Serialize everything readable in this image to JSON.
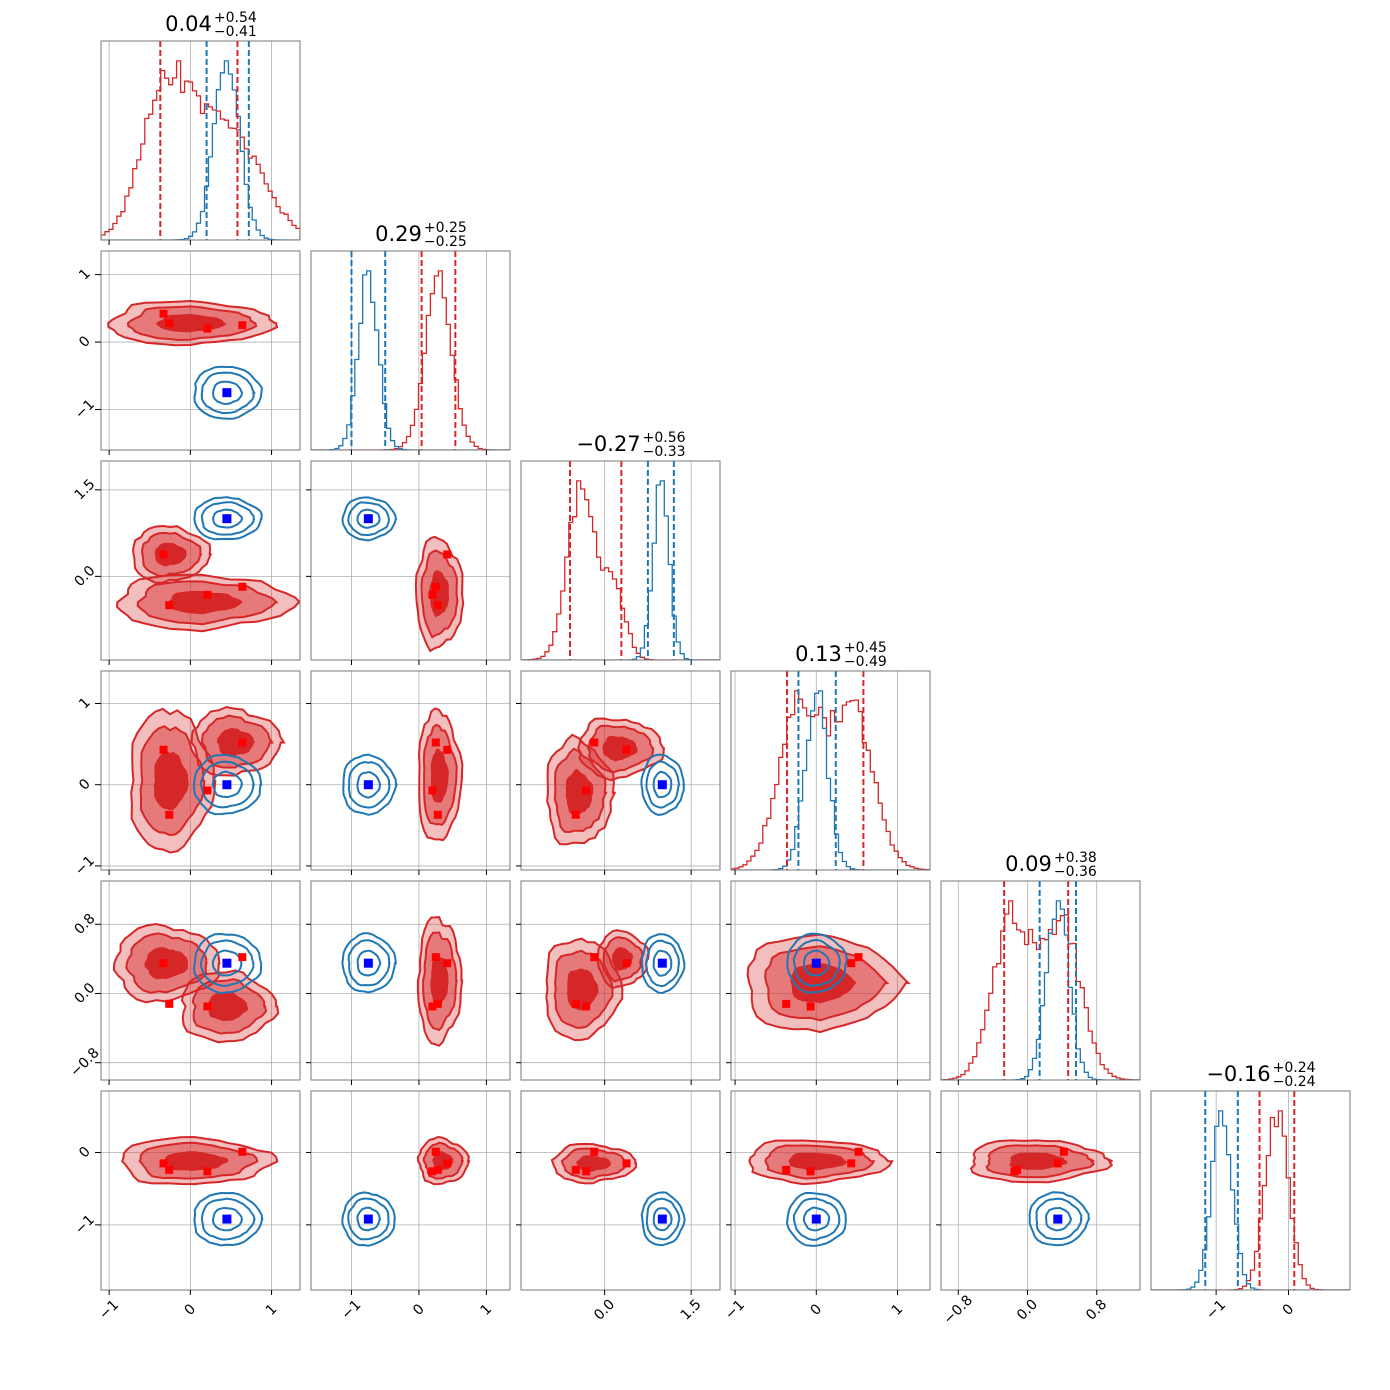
{
  "chart_data": {
    "type": "corner",
    "n_params": 6,
    "colors": {
      "red_posterior": "#d62728",
      "blue_posterior": "#1f77b4",
      "red_marker": "#ff0000",
      "blue_marker": "#0000ff",
      "grid": "#b0b0b0"
    },
    "titles": [
      {
        "median": "0.04",
        "plus": "+0.54",
        "minus": "−0.41"
      },
      {
        "median": "0.29",
        "plus": "+0.25",
        "minus": "−0.25"
      },
      {
        "median": "−0.27",
        "plus": "+0.56",
        "minus": "−0.33"
      },
      {
        "median": "0.13",
        "plus": "+0.45",
        "minus": "−0.49"
      },
      {
        "median": "0.09",
        "plus": "+0.38",
        "minus": "−0.36"
      },
      {
        "median": "−0.16",
        "plus": "+0.24",
        "minus": "−0.24"
      }
    ],
    "axes": [
      {
        "range": [
          -1.1,
          1.35
        ],
        "ticks": [
          -1,
          0,
          1
        ],
        "tick_labels": [
          "−1",
          "0",
          "1"
        ]
      },
      {
        "range": [
          -1.6,
          1.35
        ],
        "ticks": [
          -1,
          0,
          1
        ],
        "tick_labels": [
          "−1",
          "0",
          "1"
        ]
      },
      {
        "range": [
          -1.45,
          2.0
        ],
        "ticks": [
          0.0,
          1.5
        ],
        "tick_labels": [
          "0.0",
          "1.5"
        ]
      },
      {
        "range": [
          -1.05,
          1.4
        ],
        "ticks": [
          -1,
          0,
          1
        ],
        "tick_labels": [
          "−1",
          "0",
          "1"
        ]
      },
      {
        "range": [
          -1.0,
          1.3
        ],
        "ticks": [
          -0.8,
          0.0,
          0.8
        ],
        "tick_labels": [
          "−0.8",
          "0.0",
          "0.8"
        ]
      },
      {
        "range": [
          -1.9,
          0.85
        ],
        "ticks": [
          -1,
          0
        ],
        "tick_labels": [
          "−1",
          "0"
        ]
      }
    ],
    "quantile_lines": {
      "red": [
        [
          -0.37,
          0.58
        ],
        [
          0.04,
          0.54
        ],
        [
          -0.6,
          0.29
        ],
        [
          -0.36,
          0.58
        ],
        [
          -0.27,
          0.47
        ],
        [
          -0.4,
          0.08
        ]
      ],
      "blue": [
        [
          0.2,
          0.72
        ],
        [
          -1.0,
          -0.5
        ],
        [
          0.75,
          1.2
        ],
        [
          -0.22,
          0.24
        ],
        [
          0.14,
          0.56
        ],
        [
          -1.15,
          -0.7
        ]
      ]
    },
    "markers": {
      "blue": [
        0.45,
        -0.75,
        1.0,
        0.0,
        0.35,
        -0.92
      ],
      "red": [
        [
          -0.33,
          0.42,
          0.38,
          0.43,
          0.35,
          -0.15
        ],
        [
          -0.26,
          0.28,
          -0.5,
          -0.37,
          -0.12,
          -0.24
        ],
        [
          0.21,
          0.2,
          -0.32,
          -0.07,
          -0.15,
          -0.26
        ],
        [
          0.64,
          0.25,
          -0.18,
          0.52,
          0.42,
          0.01
        ]
      ]
    },
    "red_marginals": [
      {
        "modes": [
          [
            -0.3,
            0.3
          ],
          [
            0.45,
            0.42
          ]
        ],
        "weights": [
          1.0,
          0.75
        ]
      },
      {
        "modes": [
          [
            0.29,
            0.2
          ]
        ],
        "weights": [
          1.0
        ]
      },
      {
        "modes": [
          [
            -0.38,
            0.25
          ],
          [
            0.2,
            0.18
          ]
        ],
        "weights": [
          1.0,
          0.35
        ]
      },
      {
        "modes": [
          [
            -0.2,
            0.26
          ],
          [
            0.45,
            0.26
          ]
        ],
        "weights": [
          1.0,
          0.95
        ]
      },
      {
        "modes": [
          [
            -0.18,
            0.22
          ],
          [
            0.4,
            0.22
          ]
        ],
        "weights": [
          1.0,
          0.95
        ]
      },
      {
        "modes": [
          [
            -0.16,
            0.16
          ]
        ],
        "weights": [
          1.0
        ]
      }
    ],
    "blue_marginals": [
      {
        "modes": [
          [
            0.45,
            0.16
          ]
        ],
        "weights": [
          1.0
        ]
      },
      {
        "modes": [
          [
            -0.75,
            0.15
          ]
        ],
        "weights": [
          1.0
        ]
      },
      {
        "modes": [
          [
            0.98,
            0.14
          ]
        ],
        "weights": [
          1.0
        ]
      },
      {
        "modes": [
          [
            0.0,
            0.14
          ]
        ],
        "weights": [
          1.0
        ]
      },
      {
        "modes": [
          [
            0.35,
            0.13
          ]
        ],
        "weights": [
          1.0
        ]
      },
      {
        "modes": [
          [
            -0.92,
            0.14
          ]
        ],
        "weights": [
          1.0
        ]
      }
    ],
    "red_blobs": [
      {
        "row": 1,
        "col": 0,
        "parts": [
          [
            0.0,
            0.28,
            0.7,
            0.22
          ]
        ]
      },
      {
        "row": 2,
        "col": 0,
        "parts": [
          [
            -0.25,
            0.38,
            0.33,
            0.33
          ],
          [
            0.15,
            -0.45,
            0.75,
            0.32
          ]
        ]
      },
      {
        "row": 2,
        "col": 1,
        "parts": [
          [
            0.3,
            -0.3,
            0.24,
            0.65
          ]
        ]
      },
      {
        "row": 3,
        "col": 0,
        "parts": [
          [
            -0.25,
            0.05,
            0.35,
            0.6
          ],
          [
            0.55,
            0.52,
            0.38,
            0.28
          ]
        ]
      },
      {
        "row": 3,
        "col": 1,
        "parts": [
          [
            0.3,
            0.1,
            0.22,
            0.55
          ]
        ]
      },
      {
        "row": 3,
        "col": 2,
        "parts": [
          [
            -0.45,
            -0.1,
            0.4,
            0.45
          ],
          [
            0.25,
            0.45,
            0.5,
            0.25
          ]
        ]
      },
      {
        "row": 4,
        "col": 0,
        "parts": [
          [
            -0.3,
            0.35,
            0.45,
            0.3
          ],
          [
            0.45,
            -0.15,
            0.4,
            0.28
          ]
        ]
      },
      {
        "row": 4,
        "col": 1,
        "parts": [
          [
            0.3,
            0.15,
            0.22,
            0.5
          ]
        ]
      },
      {
        "row": 4,
        "col": 2,
        "parts": [
          [
            -0.4,
            0.05,
            0.45,
            0.4
          ],
          [
            0.3,
            0.4,
            0.3,
            0.22
          ]
        ]
      },
      {
        "row": 4,
        "col": 3,
        "parts": [
          [
            0.05,
            0.12,
            0.65,
            0.38
          ]
        ]
      },
      {
        "row": 5,
        "col": 0,
        "parts": [
          [
            0.05,
            -0.12,
            0.65,
            0.22
          ]
        ]
      },
      {
        "row": 5,
        "col": 1,
        "parts": [
          [
            0.35,
            -0.12,
            0.25,
            0.22
          ]
        ]
      },
      {
        "row": 5,
        "col": 2,
        "parts": [
          [
            -0.2,
            -0.15,
            0.5,
            0.18
          ]
        ]
      },
      {
        "row": 5,
        "col": 3,
        "parts": [
          [
            0.0,
            -0.12,
            0.6,
            0.2
          ]
        ]
      },
      {
        "row": 5,
        "col": 4,
        "parts": [
          [
            0.1,
            -0.12,
            0.55,
            0.2
          ]
        ]
      }
    ]
  }
}
